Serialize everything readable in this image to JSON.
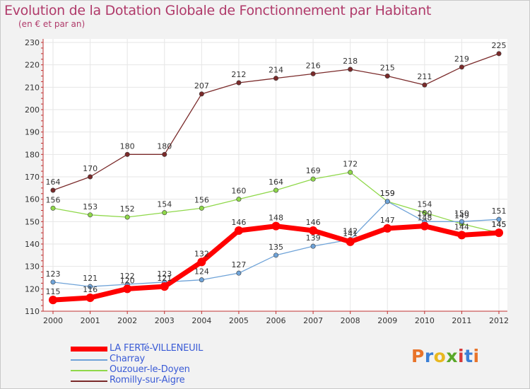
{
  "title": "Evolution de la Dotation Globale de Fonctionnement par Habitant",
  "subtitle": "(en € et par an)",
  "brand": {
    "text": "Proxiti",
    "colors": [
      "#e8742a",
      "#3a7fd6",
      "#e8b820",
      "#5aa82a",
      "#d63a3a",
      "#3a7fd6",
      "#e8742a"
    ]
  },
  "chart_data": {
    "type": "line",
    "x": [
      "2000",
      "2001",
      "2002",
      "2003",
      "2004",
      "2005",
      "2006",
      "2007",
      "2008",
      "2009",
      "2010",
      "2011",
      "2012"
    ],
    "ylim": [
      110,
      230
    ],
    "yticks": [
      110,
      120,
      130,
      140,
      150,
      160,
      170,
      180,
      190,
      200,
      210,
      220,
      230
    ],
    "grid": true,
    "legend_position": "bottom-left",
    "series": [
      {
        "name": "LA FERTé-VILLENEUIL",
        "color": "#ff0000",
        "values": [
          115,
          116,
          120,
          121,
          132,
          146,
          148,
          146,
          141,
          147,
          148,
          144,
          145
        ],
        "labels": [
          "115",
          "116",
          "120",
          "121",
          "132",
          "146",
          "148",
          "146",
          "141",
          "147",
          "148",
          "144",
          "145"
        ]
      },
      {
        "name": "Charray",
        "color": "#6fa3d8",
        "values": [
          123,
          121,
          122,
          123,
          124,
          127,
          135,
          139,
          142,
          159,
          150,
          150,
          151
        ],
        "labels": [
          "123",
          "121",
          "122",
          "123",
          "124",
          "127",
          "135",
          "139",
          "142",
          "159",
          "150",
          "150",
          "151"
        ]
      },
      {
        "name": "Ouzouer-le-Doyen",
        "color": "#8fd84a",
        "values": [
          156,
          153,
          152,
          154,
          156,
          160,
          164,
          169,
          172,
          159,
          154,
          149,
          145
        ],
        "labels": [
          "156",
          "153",
          "152",
          "154",
          "156",
          "160",
          "164",
          "169",
          "172",
          "159",
          "154",
          "149",
          "145"
        ]
      },
      {
        "name": "Romilly-sur-Aigre",
        "color": "#7a2a2a",
        "values": [
          164,
          170,
          180,
          180,
          207,
          212,
          214,
          216,
          218,
          215,
          211,
          219,
          225
        ],
        "labels": [
          "164",
          "170",
          "180",
          "180",
          "207",
          "212",
          "214",
          "216",
          "218",
          "215",
          "211",
          "219",
          "225"
        ]
      }
    ]
  }
}
